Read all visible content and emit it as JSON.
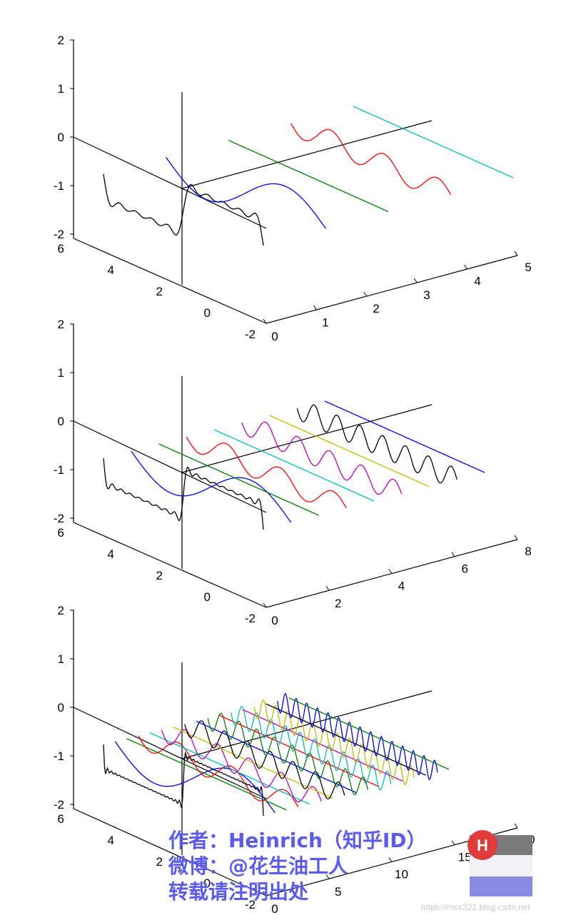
{
  "chart_data": [
    {
      "type": "line3d",
      "title": "",
      "zlim": [
        -2,
        2
      ],
      "ylim": [
        -2,
        6
      ],
      "xlim": [
        0,
        5
      ],
      "z_ticks": [
        "2",
        "1",
        "0",
        "-1",
        "-2"
      ],
      "y_ticks": [
        "6",
        "4",
        "2",
        "0",
        "-2"
      ],
      "x_ticks": [
        "0",
        "1",
        "2",
        "3",
        "4",
        "5"
      ],
      "grid": false,
      "series": [
        {
          "color": "#000000",
          "depth": 0,
          "kind": "square-wave",
          "harmonics": 5
        },
        {
          "color": "#0000ff",
          "depth": 1,
          "kind": "sine",
          "frequency": 1
        },
        {
          "color": "#007f00",
          "depth": 2,
          "kind": "flat",
          "frequency": 2
        },
        {
          "color": "#ff0000",
          "depth": 3,
          "kind": "sine",
          "frequency": 3
        },
        {
          "color": "#00bfbf",
          "depth": 4,
          "kind": "flat",
          "frequency": 4
        }
      ]
    },
    {
      "type": "line3d",
      "title": "",
      "zlim": [
        -2,
        2
      ],
      "ylim": [
        -2,
        6
      ],
      "xlim": [
        0,
        8
      ],
      "z_ticks": [
        "2",
        "1",
        "0",
        "-1",
        "-2"
      ],
      "y_ticks": [
        "6",
        "4",
        "2",
        "0",
        "-2"
      ],
      "x_ticks": [
        "0",
        "2",
        "4",
        "6",
        "8"
      ],
      "grid": false,
      "series": [
        {
          "color": "#000000",
          "depth": 0,
          "kind": "square-wave",
          "harmonics": 9
        },
        {
          "color": "#0000ff",
          "depth": 1,
          "kind": "sine",
          "frequency": 1
        },
        {
          "color": "#007f00",
          "depth": 2,
          "kind": "flat",
          "frequency": 2
        },
        {
          "color": "#ff0000",
          "depth": 3,
          "kind": "sine",
          "frequency": 3
        },
        {
          "color": "#00bfbf",
          "depth": 4,
          "kind": "flat",
          "frequency": 4
        },
        {
          "color": "#bf00bf",
          "depth": 5,
          "kind": "sine",
          "frequency": 5
        },
        {
          "color": "#bfbf00",
          "depth": 6,
          "kind": "flat",
          "frequency": 6
        },
        {
          "color": "#000000",
          "depth": 7,
          "kind": "sine",
          "frequency": 7
        },
        {
          "color": "#0000ff",
          "depth": 8,
          "kind": "flat",
          "frequency": 8
        }
      ]
    },
    {
      "type": "line3d",
      "title": "",
      "zlim": [
        -2,
        2
      ],
      "ylim": [
        -2,
        6
      ],
      "xlim": [
        0,
        20
      ],
      "z_ticks": [
        "2",
        "1",
        "0",
        "-1",
        "-2"
      ],
      "y_ticks": [
        "6",
        "4",
        "2",
        "0",
        "-2"
      ],
      "x_ticks": [
        "0",
        "5",
        "10",
        "15",
        "20"
      ],
      "grid": false,
      "series": [
        {
          "color": "#000000",
          "depth": 0,
          "kind": "square-wave",
          "harmonics": 20
        },
        {
          "color": "#0000ff",
          "depth": 1,
          "kind": "sine",
          "frequency": 1
        },
        {
          "color": "#007f00",
          "depth": 2,
          "kind": "flat",
          "frequency": 2
        },
        {
          "color": "#ff0000",
          "depth": 3,
          "kind": "sine",
          "frequency": 3
        },
        {
          "color": "#00bfbf",
          "depth": 4,
          "kind": "flat",
          "frequency": 4
        },
        {
          "color": "#bf00bf",
          "depth": 5,
          "kind": "sine",
          "frequency": 5
        },
        {
          "color": "#bfbf00",
          "depth": 6,
          "kind": "flat",
          "frequency": 6
        },
        {
          "color": "#000000",
          "depth": 7,
          "kind": "sine",
          "frequency": 7
        },
        {
          "color": "#0000ff",
          "depth": 8,
          "kind": "flat",
          "frequency": 8
        },
        {
          "color": "#007f00",
          "depth": 9,
          "kind": "sine",
          "frequency": 9
        },
        {
          "color": "#ff0000",
          "depth": 10,
          "kind": "flat",
          "frequency": 10
        },
        {
          "color": "#00bfbf",
          "depth": 11,
          "kind": "sine",
          "frequency": 11
        },
        {
          "color": "#bf00bf",
          "depth": 12,
          "kind": "flat",
          "frequency": 12
        },
        {
          "color": "#bfbf00",
          "depth": 13,
          "kind": "sine",
          "frequency": 13
        },
        {
          "color": "#000000",
          "depth": 14,
          "kind": "flat",
          "frequency": 14
        },
        {
          "color": "#0000ff",
          "depth": 15,
          "kind": "sine",
          "frequency": 15
        },
        {
          "color": "#007f00",
          "depth": 16,
          "kind": "flat",
          "frequency": 16
        }
      ]
    }
  ],
  "watermark": {
    "author": "作者：Heinrich（知乎ID）",
    "weibo": "微博：@花生油工人",
    "notice": "转载请注明出处",
    "logo_letter": "H",
    "site_url": "https://mcc321.blog.csdn.net"
  },
  "colors": {
    "watermark_text": "#5b5bf0",
    "logo_red": "#e03a3a"
  }
}
